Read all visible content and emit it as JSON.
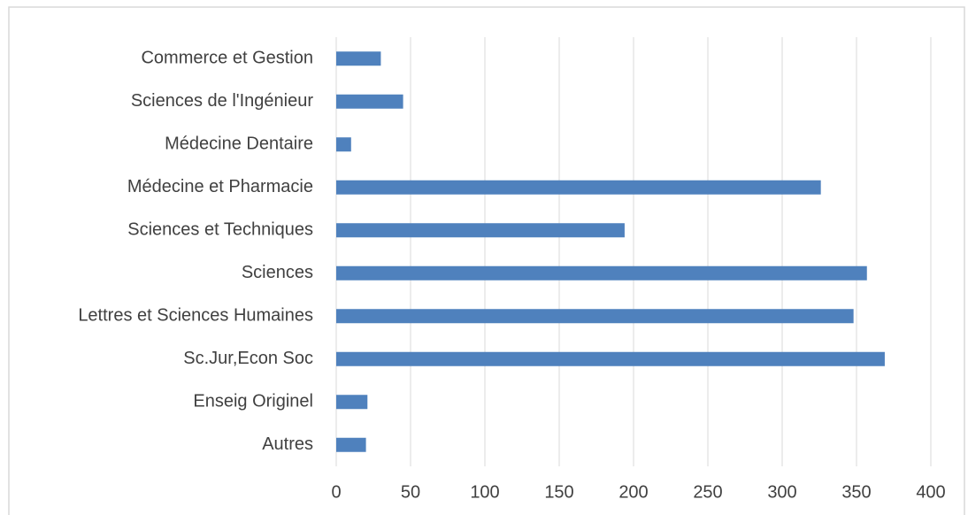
{
  "chart_data": {
    "type": "bar",
    "orientation": "horizontal",
    "categories": [
      "Commerce et Gestion",
      "Sciences de l'Ingénieur",
      "Médecine Dentaire",
      "Médecine et Pharmacie",
      "Sciences et Techniques",
      "Sciences",
      "Lettres et Sciences Humaines",
      "Sc.Jur,Econ Soc",
      "Enseig Originel",
      "Autres"
    ],
    "values": [
      30,
      45,
      10,
      326,
      194,
      357,
      348,
      369,
      21,
      20
    ],
    "color": "#4f81bd",
    "xlim": [
      0,
      400
    ],
    "xticks": [
      0,
      50,
      100,
      150,
      200,
      250,
      300,
      350,
      400
    ],
    "grid": true
  }
}
